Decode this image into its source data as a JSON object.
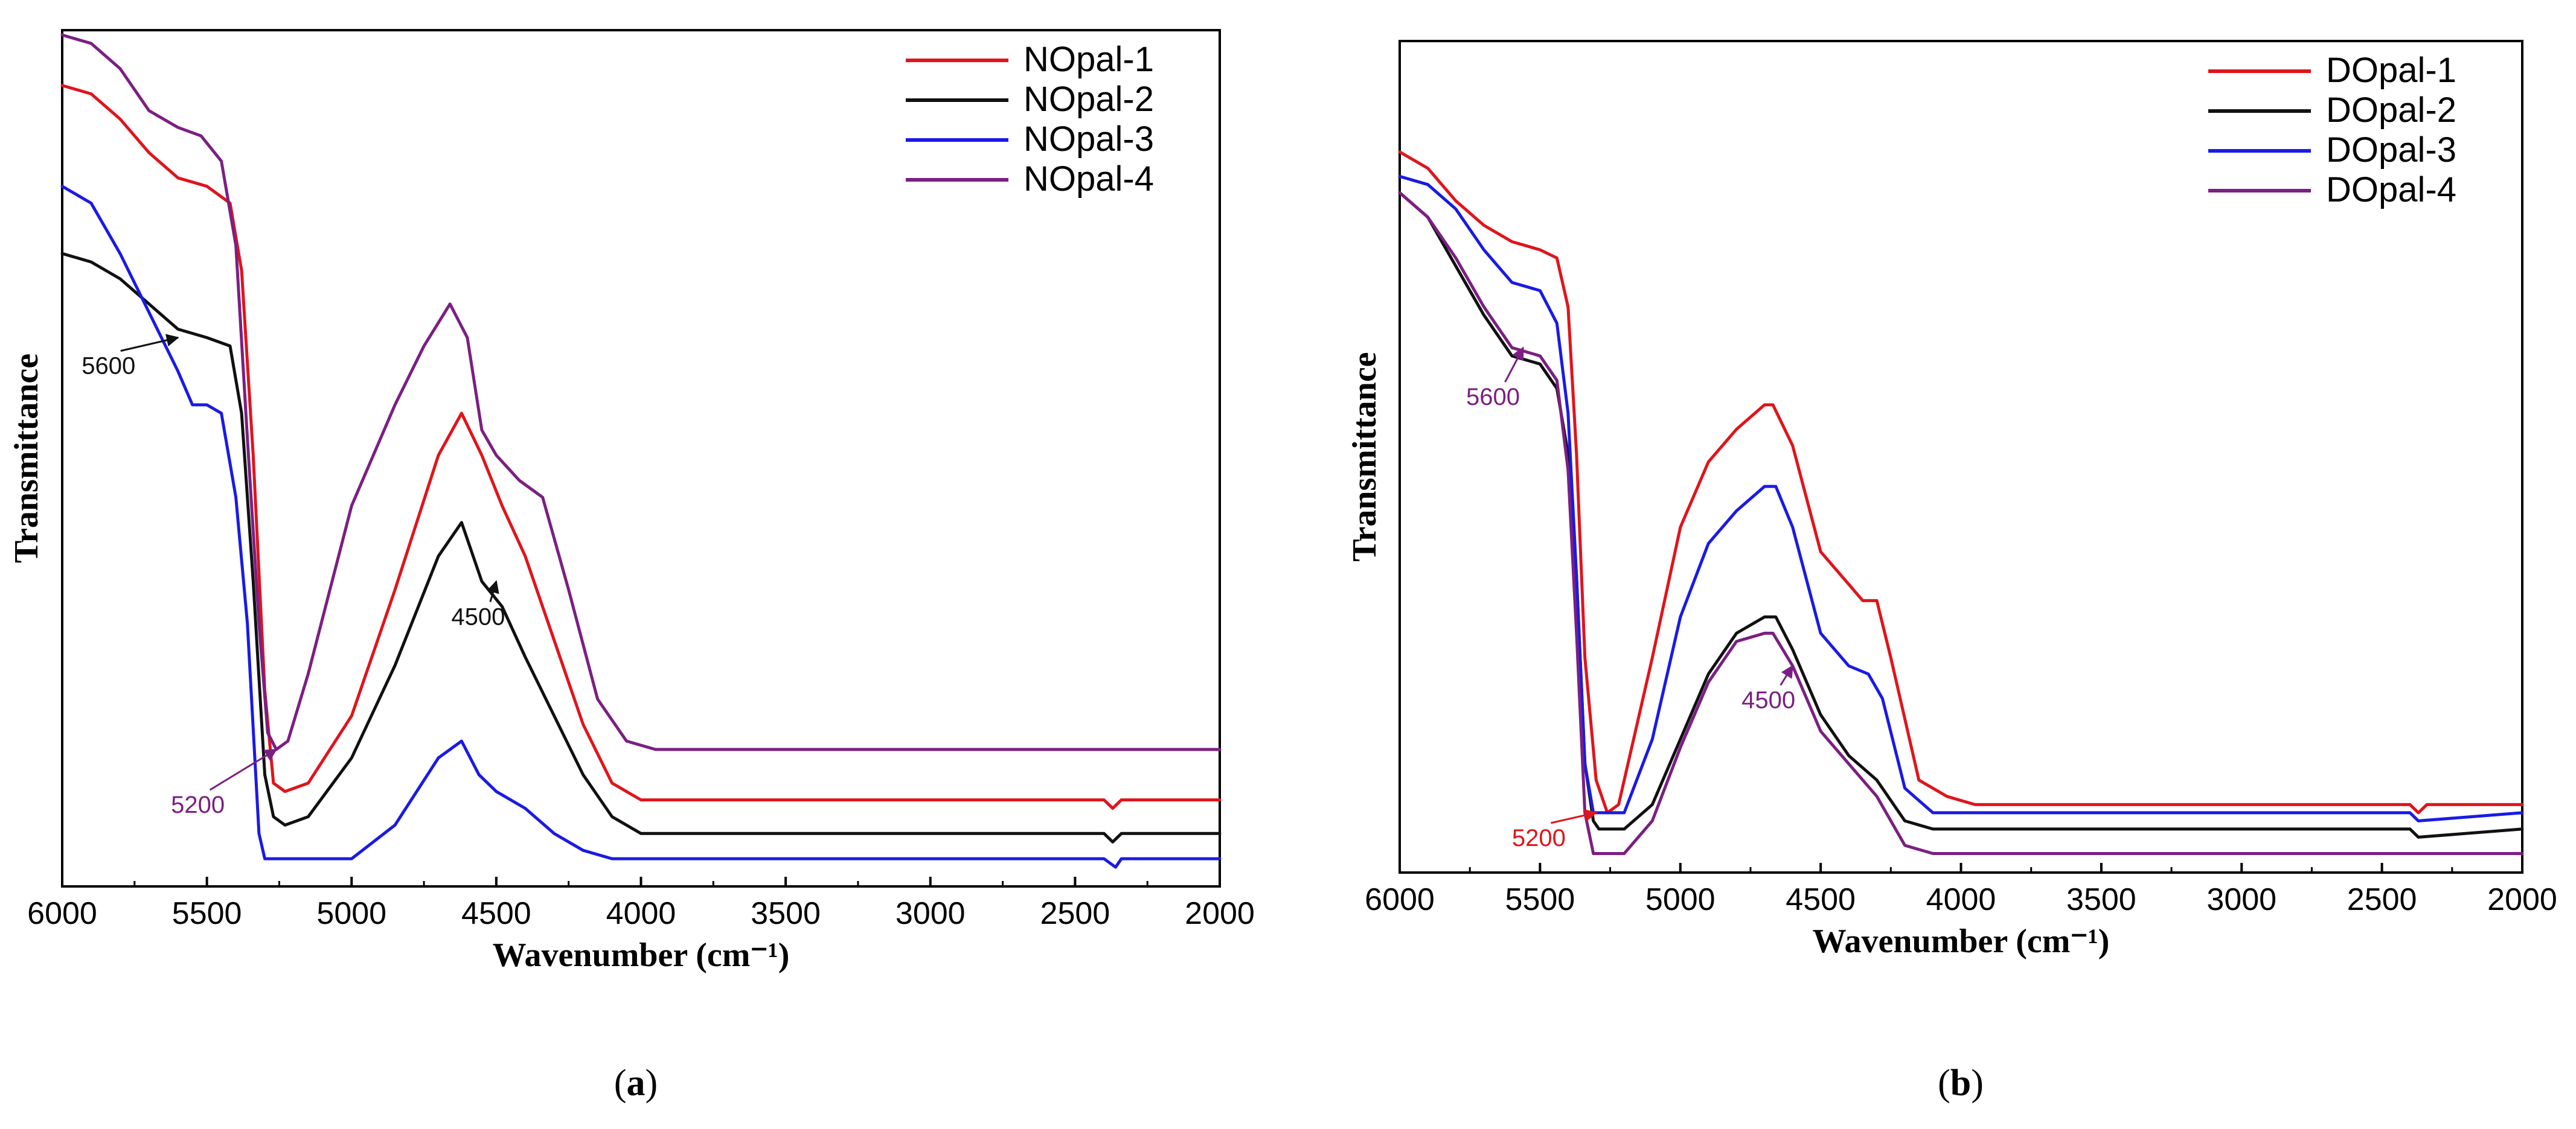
{
  "chart_data": [
    {
      "id": "a",
      "type": "line",
      "caption_letter": "a",
      "title": "",
      "xlabel": "Wavenumber (cm⁻¹)",
      "ylabel": "Transmittance",
      "xlim": [
        6000,
        2000
      ],
      "ylim": [
        0,
        1
      ],
      "xticks": [
        6000,
        5500,
        5000,
        4500,
        4000,
        3500,
        3000,
        2500,
        2000
      ],
      "grid": false,
      "legend_position": "top-right",
      "series": [
        {
          "name": "NOpal-1",
          "color": "#e0141b",
          "x": [
            6000,
            5900,
            5800,
            5700,
            5600,
            5500,
            5420,
            5380,
            5340,
            5300,
            5270,
            5230,
            5150,
            5000,
            4850,
            4700,
            4620,
            4550,
            4480,
            4400,
            4300,
            4200,
            4100,
            4000,
            3900,
            3000,
            2400,
            2370,
            2340,
            2000
          ],
          "y": [
            0.94,
            0.93,
            0.9,
            0.86,
            0.83,
            0.82,
            0.8,
            0.72,
            0.5,
            0.22,
            0.11,
            0.1,
            0.11,
            0.19,
            0.34,
            0.5,
            0.55,
            0.5,
            0.44,
            0.38,
            0.28,
            0.18,
            0.11,
            0.09,
            0.09,
            0.09,
            0.09,
            0.08,
            0.09,
            0.09
          ]
        },
        {
          "name": "NOpal-2",
          "color": "#111111",
          "x": [
            6000,
            5900,
            5800,
            5700,
            5600,
            5500,
            5420,
            5380,
            5340,
            5300,
            5270,
            5230,
            5150,
            5000,
            4850,
            4700,
            4620,
            4550,
            4480,
            4400,
            4300,
            4200,
            4100,
            4000,
            3900,
            3000,
            2400,
            2370,
            2340,
            2000
          ],
          "y": [
            0.74,
            0.73,
            0.71,
            0.68,
            0.65,
            0.64,
            0.63,
            0.55,
            0.35,
            0.12,
            0.07,
            0.06,
            0.07,
            0.14,
            0.25,
            0.38,
            0.42,
            0.35,
            0.32,
            0.26,
            0.19,
            0.12,
            0.07,
            0.05,
            0.05,
            0.05,
            0.05,
            0.04,
            0.05,
            0.05
          ]
        },
        {
          "name": "NOpal-3",
          "color": "#1a1ae6",
          "x": [
            6000,
            5900,
            5800,
            5700,
            5600,
            5550,
            5500,
            5450,
            5400,
            5360,
            5320,
            5300,
            5280,
            5200,
            5000,
            4850,
            4700,
            4620,
            4560,
            4500,
            4400,
            4300,
            4200,
            4100,
            4000,
            3900,
            3000,
            2400,
            2360,
            2340,
            2000
          ],
          "y": [
            0.82,
            0.8,
            0.74,
            0.67,
            0.6,
            0.56,
            0.56,
            0.55,
            0.45,
            0.3,
            0.05,
            0.02,
            0.02,
            0.02,
            0.02,
            0.06,
            0.14,
            0.16,
            0.12,
            0.1,
            0.08,
            0.05,
            0.03,
            0.02,
            0.02,
            0.02,
            0.02,
            0.02,
            0.01,
            0.02,
            0.02
          ]
        },
        {
          "name": "NOpal-4",
          "color": "#7b1f82",
          "x": [
            6000,
            5900,
            5800,
            5700,
            5600,
            5520,
            5450,
            5400,
            5360,
            5320,
            5290,
            5260,
            5220,
            5150,
            5000,
            4850,
            4750,
            4660,
            4600,
            4550,
            4500,
            4420,
            4340,
            4250,
            4150,
            4050,
            3950,
            3000,
            2500,
            2000
          ],
          "y": [
            1.0,
            0.99,
            0.96,
            0.91,
            0.89,
            0.88,
            0.85,
            0.75,
            0.52,
            0.3,
            0.17,
            0.15,
            0.16,
            0.24,
            0.44,
            0.56,
            0.63,
            0.68,
            0.64,
            0.53,
            0.5,
            0.47,
            0.45,
            0.34,
            0.21,
            0.16,
            0.15,
            0.15,
            0.15,
            0.15
          ]
        }
      ],
      "annotations": [
        {
          "text": "5600",
          "color": "#111111",
          "x": 5600,
          "y": 0.64,
          "dx": -115,
          "dy": 60
        },
        {
          "text": "4500",
          "color": "#111111",
          "x": 4500,
          "y": 0.35,
          "dx": -30,
          "dy": 72
        },
        {
          "text": "5200",
          "color": "#7b1f82",
          "x": 5260,
          "y": 0.15,
          "dx": -130,
          "dy": 105
        }
      ]
    },
    {
      "id": "b",
      "type": "line",
      "caption_letter": "b",
      "title": "",
      "xlabel": "Wavenumber (cm⁻¹)",
      "ylabel": "Transmittance",
      "xlim": [
        6000,
        2000
      ],
      "ylim": [
        0,
        1
      ],
      "xticks": [
        6000,
        5500,
        5000,
        4500,
        4000,
        3500,
        3000,
        2500,
        2000
      ],
      "grid": false,
      "legend_position": "top-right",
      "series": [
        {
          "name": "DOpal-1",
          "color": "#e0141b",
          "x": [
            6000,
            5900,
            5800,
            5700,
            5600,
            5500,
            5440,
            5400,
            5370,
            5340,
            5300,
            5260,
            5220,
            5100,
            5000,
            4900,
            4800,
            4700,
            4670,
            4600,
            4500,
            4400,
            4350,
            4300,
            4250,
            4150,
            4050,
            3950,
            3000,
            2400,
            2370,
            2340,
            2000
          ],
          "y": [
            0.87,
            0.85,
            0.81,
            0.78,
            0.76,
            0.75,
            0.74,
            0.68,
            0.5,
            0.25,
            0.1,
            0.06,
            0.07,
            0.25,
            0.41,
            0.49,
            0.53,
            0.56,
            0.56,
            0.51,
            0.38,
            0.34,
            0.32,
            0.32,
            0.25,
            0.1,
            0.08,
            0.07,
            0.07,
            0.07,
            0.06,
            0.07,
            0.07
          ]
        },
        {
          "name": "DOpal-2",
          "color": "#111111",
          "x": [
            6000,
            5900,
            5800,
            5700,
            5600,
            5500,
            5440,
            5400,
            5370,
            5340,
            5310,
            5290,
            5200,
            5100,
            5000,
            4900,
            4800,
            4700,
            4660,
            4600,
            4500,
            4400,
            4300,
            4200,
            4100,
            4000,
            3000,
            2400,
            2370,
            2000
          ],
          "y": [
            0.82,
            0.79,
            0.73,
            0.67,
            0.62,
            0.61,
            0.58,
            0.5,
            0.35,
            0.12,
            0.05,
            0.04,
            0.04,
            0.07,
            0.15,
            0.23,
            0.28,
            0.3,
            0.3,
            0.26,
            0.18,
            0.13,
            0.1,
            0.05,
            0.04,
            0.04,
            0.04,
            0.04,
            0.03,
            0.04
          ]
        },
        {
          "name": "DOpal-3",
          "color": "#1a1ae6",
          "x": [
            6000,
            5900,
            5800,
            5700,
            5600,
            5500,
            5440,
            5400,
            5370,
            5340,
            5310,
            5290,
            5200,
            5100,
            5000,
            4900,
            4800,
            4700,
            4660,
            4600,
            4500,
            4400,
            4330,
            4280,
            4200,
            4100,
            4000,
            3000,
            2400,
            2370,
            2000
          ],
          "y": [
            0.84,
            0.83,
            0.8,
            0.75,
            0.71,
            0.7,
            0.66,
            0.55,
            0.35,
            0.12,
            0.06,
            0.06,
            0.06,
            0.15,
            0.3,
            0.39,
            0.43,
            0.46,
            0.46,
            0.41,
            0.28,
            0.24,
            0.23,
            0.2,
            0.09,
            0.06,
            0.06,
            0.06,
            0.06,
            0.05,
            0.06
          ]
        },
        {
          "name": "DOpal-4",
          "color": "#7b1f82",
          "x": [
            6000,
            5900,
            5800,
            5700,
            5600,
            5500,
            5440,
            5400,
            5370,
            5340,
            5310,
            5290,
            5200,
            5100,
            5000,
            4900,
            4800,
            4700,
            4670,
            4600,
            4500,
            4400,
            4300,
            4200,
            4100,
            4000,
            3000,
            2000
          ],
          "y": [
            0.82,
            0.79,
            0.74,
            0.68,
            0.63,
            0.62,
            0.59,
            0.48,
            0.28,
            0.06,
            0.01,
            0.01,
            0.01,
            0.05,
            0.14,
            0.22,
            0.27,
            0.28,
            0.28,
            0.24,
            0.16,
            0.12,
            0.08,
            0.02,
            0.01,
            0.01,
            0.01,
            0.01
          ]
        }
      ],
      "annotations": [
        {
          "text": "5600",
          "color": "#7b1f82",
          "x": 5560,
          "y": 0.63,
          "dx": -50,
          "dy": 95
        },
        {
          "text": "5200",
          "color": "#e0141b",
          "x": 5300,
          "y": 0.06,
          "dx": -95,
          "dy": 55
        },
        {
          "text": "4500",
          "color": "#7b1f82",
          "x": 4600,
          "y": 0.24,
          "dx": -40,
          "dy": 70
        }
      ]
    }
  ]
}
